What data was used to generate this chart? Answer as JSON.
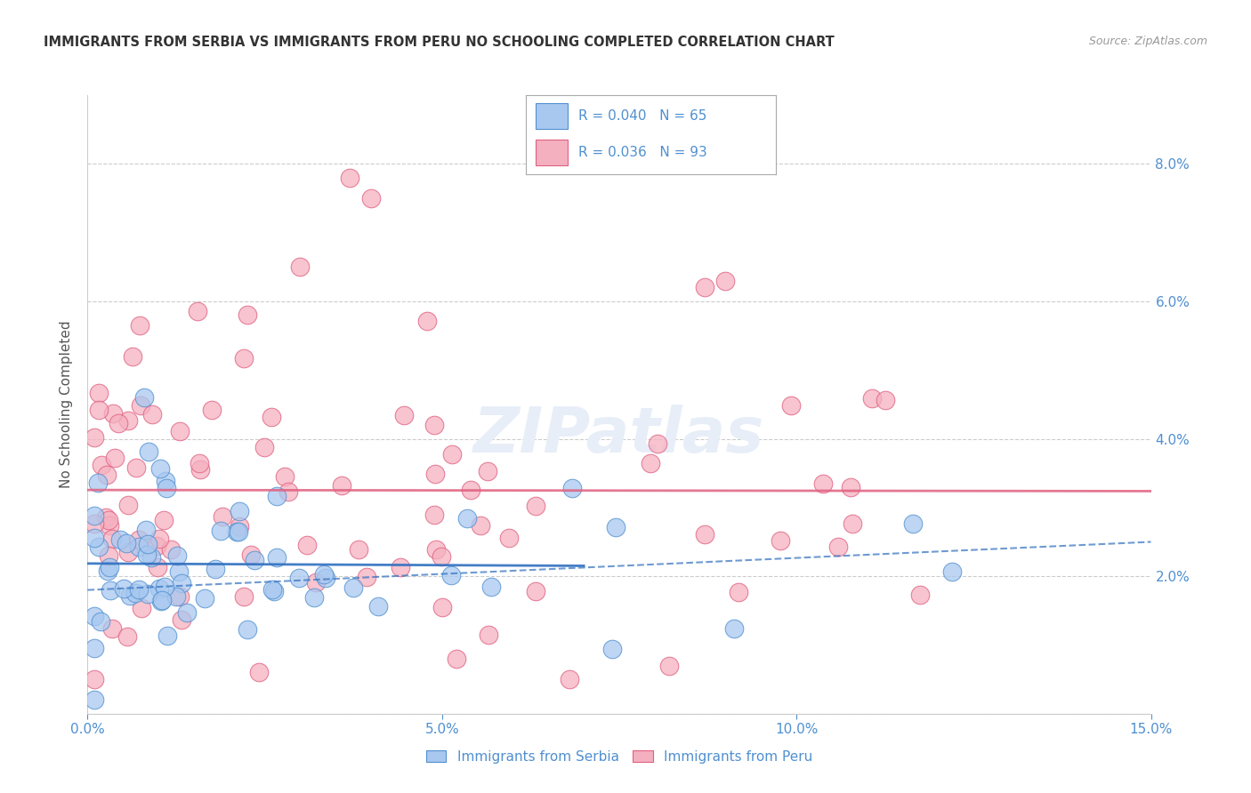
{
  "title": "IMMIGRANTS FROM SERBIA VS IMMIGRANTS FROM PERU NO SCHOOLING COMPLETED CORRELATION CHART",
  "source": "Source: ZipAtlas.com",
  "ylabel": "No Schooling Completed",
  "xlabel_serbia": "Immigrants from Serbia",
  "xlabel_peru": "Immigrants from Peru",
  "r_serbia": 0.04,
  "n_serbia": 65,
  "r_peru": 0.036,
  "n_peru": 93,
  "xlim": [
    0.0,
    0.15
  ],
  "ylim": [
    0.0,
    0.09
  ],
  "yticks": [
    0.0,
    0.02,
    0.04,
    0.06,
    0.08
  ],
  "xticks": [
    0.0,
    0.05,
    0.1,
    0.15
  ],
  "color_serbia_fill": "#A8C8F0",
  "color_serbia_edge": "#5090D0",
  "color_peru_fill": "#F5B0C0",
  "color_peru_edge": "#E06080",
  "color_serbia_line": "#3070C0",
  "color_peru_line": "#E06080",
  "color_axis": "#5090D0",
  "color_grid": "#CCCCCC",
  "background_color": "#FFFFFF",
  "watermark_color": "#E8EEF8"
}
